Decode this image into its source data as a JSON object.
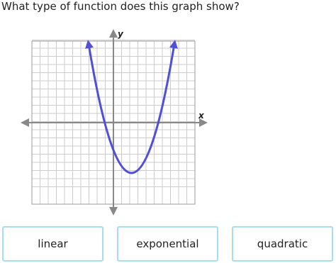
{
  "question": "What type of function does this graph show?",
  "graph": {
    "x_axis_label": "x",
    "y_axis_label": "y"
  },
  "choices": [
    "linear",
    "exponential",
    "quadratic"
  ]
}
